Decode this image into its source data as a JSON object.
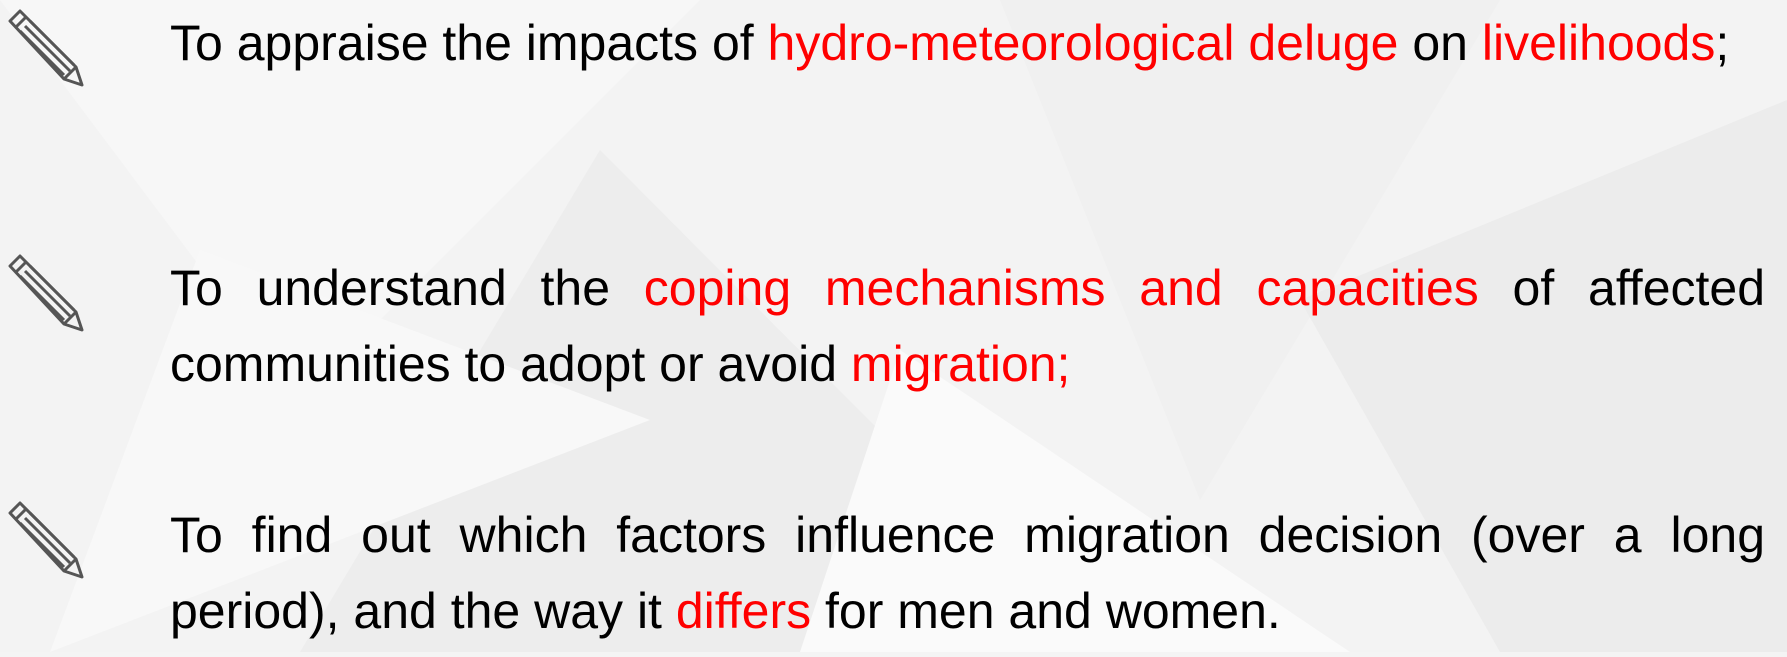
{
  "items": [
    {
      "segments": [
        {
          "text": "To appraise the impacts of ",
          "color": "#000000"
        },
        {
          "text": "hydro-meteorological deluge",
          "color": "#ff0000"
        },
        {
          "text": " on ",
          "color": "#000000"
        },
        {
          "text": "livelihoods",
          "color": "#ff0000"
        },
        {
          "text": ";",
          "color": "#000000"
        }
      ]
    },
    {
      "segments": [
        {
          "text": "To understand the ",
          "color": "#000000"
        },
        {
          "text": "coping mechanisms and capacities",
          "color": "#ff0000"
        },
        {
          "text": " of affected communities to adopt or avoid ",
          "color": "#000000"
        },
        {
          "text": "migration;",
          "color": "#ff0000"
        }
      ]
    },
    {
      "segments": [
        {
          "text": "To find out which factors influence  migration decision (over a long period), and the way it ",
          "color": "#000000"
        },
        {
          "text": "differs",
          "color": "#ff0000"
        },
        {
          "text": " for men and women.",
          "color": "#000000"
        }
      ]
    }
  ]
}
